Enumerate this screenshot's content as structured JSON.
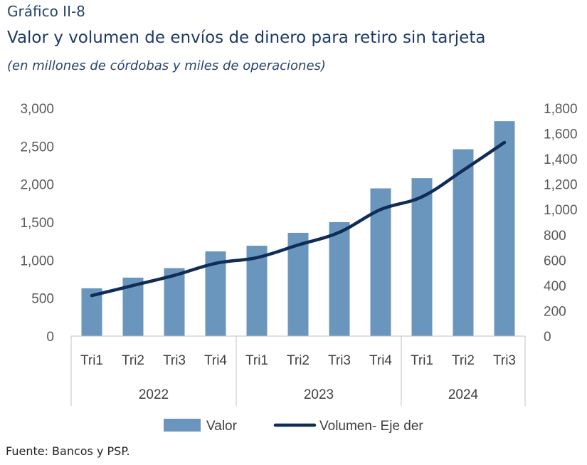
{
  "header": {
    "figure_label": "Gráfico II-8",
    "title": "Valor y volumen de envíos de dinero para retiro sin tarjeta",
    "subtitle": "(en millones de córdobas y miles de operaciones)"
  },
  "source": "Fuente: Bancos y PSP.",
  "colors": {
    "bar": "#6a96bd",
    "line": "#0f2d56",
    "axis": "#c0c0c0"
  },
  "chart_data": {
    "type": "bar",
    "categories": [
      "Tri1",
      "Tri2",
      "Tri3",
      "Tri4",
      "Tri1",
      "Tri2",
      "Tri3",
      "Tri4",
      "Tri1",
      "Tri2",
      "Tri3"
    ],
    "groups": [
      {
        "label": "2022",
        "count": 4
      },
      {
        "label": "2023",
        "count": 4
      },
      {
        "label": "2024",
        "count": 3
      }
    ],
    "series": [
      {
        "name": "Valor",
        "type": "bar",
        "axis": "left",
        "values": [
          630,
          770,
          895,
          1115,
          1190,
          1360,
          1500,
          1945,
          2080,
          2460,
          2830
        ]
      },
      {
        "name": "Volumen- Eje der",
        "type": "line",
        "axis": "right",
        "values": [
          320,
          400,
          480,
          575,
          620,
          720,
          820,
          1000,
          1100,
          1310,
          1530
        ]
      }
    ],
    "y_left": {
      "min": 0,
      "max": 3000,
      "ticks": [
        "0",
        "500",
        "1,000",
        "1,500",
        "2,000",
        "2,500",
        "3,000"
      ]
    },
    "y_right": {
      "min": 0,
      "max": 1800,
      "ticks": [
        "0",
        "200",
        "400",
        "600",
        "800",
        "1,000",
        "1,200",
        "1,400",
        "1,600",
        "1,800"
      ]
    },
    "legend_position": "bottom",
    "grid": false
  }
}
